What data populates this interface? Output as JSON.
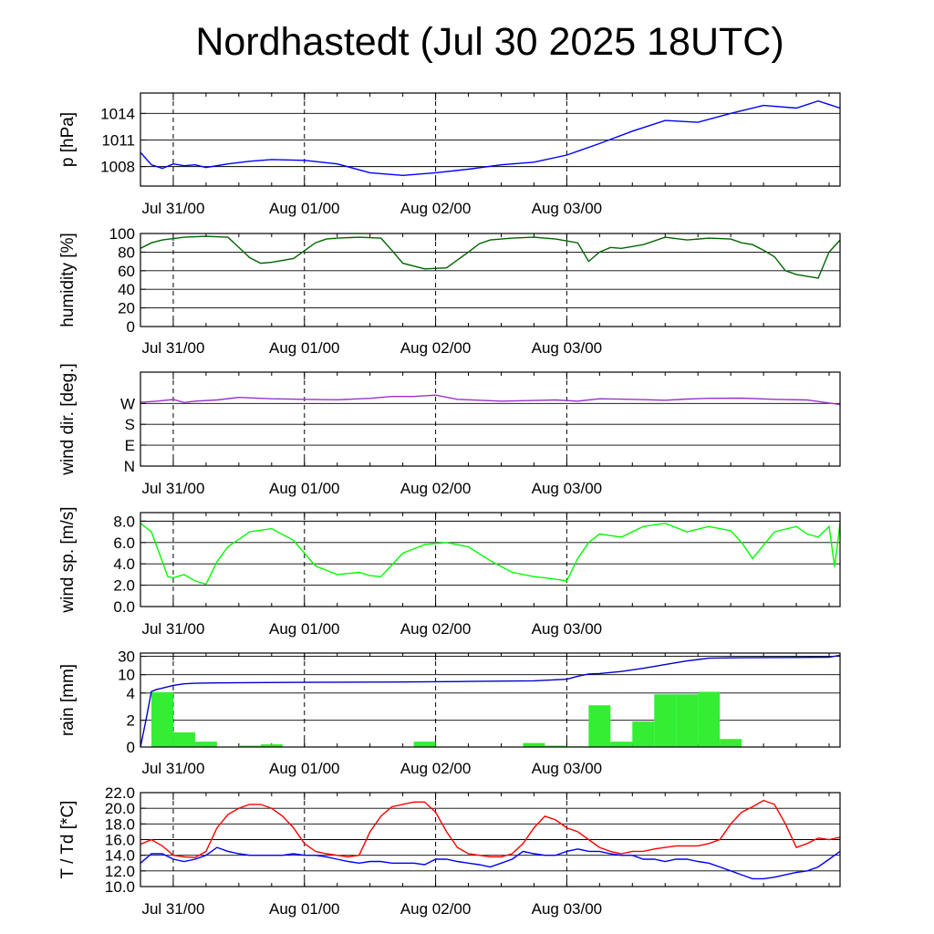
{
  "title": "Nordhastedt (Jul 30 2025 18UTC)",
  "time_labels": [
    "Jul 31/00",
    "Aug 01/00",
    "Aug 02/00",
    "Aug 03/00"
  ],
  "colors": {
    "pressure": "#0000ff",
    "humidity": "#006400",
    "wind_dir": "#9932cc",
    "wind_speed": "#00ff00",
    "rain_bar": "#33ee33",
    "rain_line": "#0000cc",
    "temperature": "#ff0000",
    "dewpoint": "#0000ff"
  },
  "chart_data": [
    {
      "type": "line",
      "name": "pressure",
      "ylabel": "p [hPa]",
      "yticks": [
        "1008",
        "1011",
        "1014"
      ],
      "ylim": [
        1005.8,
        1016.3
      ],
      "x_hours": [
        0,
        2,
        4,
        6,
        8,
        10,
        12,
        16,
        20,
        24,
        30,
        36,
        42,
        48,
        54,
        60,
        66,
        72,
        78,
        84,
        90,
        96,
        102,
        108,
        114,
        120,
        124,
        126,
        128
      ],
      "values": [
        1009.6,
        1008.2,
        1007.8,
        1008.3,
        1008.1,
        1008.2,
        1007.9,
        1008.3,
        1008.6,
        1008.8,
        1008.7,
        1008.3,
        1007.3,
        1007.0,
        1007.3,
        1007.7,
        1008.2,
        1008.5,
        1009.3,
        1010.6,
        1012.0,
        1013.2,
        1013.0,
        1014.0,
        1014.9,
        1014.6,
        1015.4,
        1015.0,
        1014.6
      ]
    },
    {
      "type": "line",
      "name": "humidity",
      "ylabel": "humidity [%]",
      "yticks": [
        "0",
        "20",
        "40",
        "60",
        "80",
        "100"
      ],
      "ylim": [
        0,
        100
      ],
      "x_hours": [
        0,
        2,
        4,
        8,
        12,
        16,
        18,
        20,
        22,
        24,
        28,
        32,
        34,
        36,
        40,
        44,
        46,
        48,
        52,
        56,
        60,
        62,
        64,
        68,
        72,
        76,
        80,
        82,
        84,
        86,
        88,
        92,
        96,
        100,
        104,
        108,
        110,
        112,
        114,
        116,
        118,
        120,
        122,
        124,
        126,
        128
      ],
      "values": [
        84,
        90,
        93,
        96,
        97,
        96,
        85,
        74,
        68,
        69,
        73,
        90,
        94,
        95,
        96,
        95,
        82,
        68,
        62,
        63,
        80,
        89,
        93,
        95,
        96,
        94,
        90,
        70,
        80,
        85,
        84,
        88,
        96,
        93,
        95,
        94,
        90,
        88,
        82,
        75,
        60,
        56,
        54,
        52,
        80,
        93
      ]
    },
    {
      "type": "line",
      "name": "wind direction",
      "ylabel": "wind dir. [deg.]",
      "yticks": [
        "N",
        "E",
        "S",
        "W"
      ],
      "ylim": [
        0,
        405
      ],
      "x_hours": [
        0,
        3,
        6,
        8,
        10,
        14,
        18,
        24,
        30,
        36,
        42,
        46,
        50,
        54,
        58,
        60,
        66,
        70,
        76,
        80,
        84,
        90,
        96,
        100,
        104,
        110,
        116,
        122,
        126,
        128
      ],
      "values": [
        275,
        280,
        287,
        274,
        280,
        285,
        296,
        290,
        288,
        286,
        292,
        300,
        300,
        306,
        288,
        286,
        280,
        282,
        285,
        280,
        290,
        288,
        284,
        289,
        292,
        293,
        288,
        285,
        272,
        265
      ]
    },
    {
      "type": "line",
      "name": "wind speed",
      "ylabel": "wind sp. [m/s]",
      "yticks": [
        "0.0",
        "2.0",
        "4.0",
        "6.0",
        "8.0"
      ],
      "ylim": [
        0,
        8.8
      ],
      "x_hours": [
        0,
        2,
        4,
        5,
        6,
        8,
        10,
        12,
        14,
        16,
        20,
        24,
        28,
        32,
        36,
        40,
        42,
        44,
        48,
        52,
        56,
        60,
        64,
        68,
        72,
        74,
        78,
        80,
        82,
        84,
        88,
        92,
        96,
        100,
        104,
        108,
        110,
        112,
        116,
        120,
        122,
        124,
        126,
        127,
        128
      ],
      "values": [
        7.8,
        7.0,
        4.2,
        2.8,
        2.7,
        3.0,
        2.4,
        2.1,
        4.2,
        5.6,
        7.0,
        7.3,
        6.2,
        3.8,
        3.0,
        3.2,
        2.9,
        2.8,
        5.0,
        5.8,
        6.0,
        5.6,
        4.3,
        3.2,
        2.8,
        2.7,
        2.4,
        4.5,
        6.0,
        6.8,
        6.5,
        7.5,
        7.8,
        7.0,
        7.5,
        7.1,
        6.0,
        4.5,
        7.0,
        7.5,
        6.8,
        6.5,
        7.5,
        3.7,
        7.8
      ]
    },
    {
      "type": "bar",
      "name": "rain",
      "ylabel": "rain [mm]",
      "yticks": [
        "0",
        "2",
        "4",
        "10",
        "30"
      ],
      "bar_width_hours": 4,
      "bar_start_hours": [
        2,
        6,
        10,
        18,
        22,
        50,
        70,
        74,
        78,
        82,
        86,
        90,
        94,
        98,
        102,
        106
      ],
      "bar_values": [
        4.3,
        1.1,
        0.4,
        0.1,
        0.2,
        0.4,
        0.3,
        0.1,
        0.05,
        3.1,
        0.4,
        1.9,
        3.9,
        3.9,
        4.4,
        0.6
      ],
      "cumulative_x_hours": [
        0,
        1,
        2,
        3,
        4,
        6,
        8,
        10,
        14,
        20,
        30,
        48,
        60,
        72,
        78,
        80,
        82,
        84,
        88,
        92,
        96,
        100,
        104,
        110,
        120,
        126,
        128
      ],
      "cumulative_values": [
        0,
        2.0,
        4.5,
        5.2,
        5.6,
        6.5,
        7.0,
        7.2,
        7.3,
        7.4,
        7.5,
        7.6,
        7.8,
        8.0,
        8.5,
        9.5,
        10.8,
        11.3,
        13.5,
        17.0,
        21.0,
        25.0,
        28.0,
        28.5,
        28.8,
        29.0,
        31.5
      ]
    },
    {
      "type": "line",
      "name": "temperature and dewpoint",
      "ylabel": "T / Td [*C]",
      "yticks": [
        "10.0",
        "12.0",
        "14.0",
        "16.0",
        "18.0",
        "20.0",
        "22.0"
      ],
      "ylim": [
        10,
        22
      ],
      "x_hours": [
        0,
        2,
        4,
        6,
        8,
        10,
        12,
        14,
        16,
        18,
        20,
        22,
        24,
        26,
        28,
        30,
        32,
        34,
        36,
        38,
        40,
        42,
        44,
        46,
        48,
        50,
        52,
        54,
        56,
        58,
        60,
        62,
        64,
        66,
        68,
        70,
        72,
        74,
        76,
        78,
        80,
        82,
        84,
        86,
        88,
        90,
        92,
        94,
        96,
        98,
        100,
        102,
        104,
        106,
        108,
        110,
        112,
        114,
        116,
        118,
        120,
        122,
        124,
        126,
        128
      ],
      "series": [
        {
          "name": "T",
          "values": [
            15.4,
            16.0,
            15.2,
            14.0,
            13.8,
            13.7,
            14.5,
            17.5,
            19.2,
            20.0,
            20.5,
            20.5,
            20.0,
            19.0,
            17.5,
            15.5,
            14.5,
            14.2,
            14.0,
            13.8,
            14.0,
            17.0,
            19.0,
            20.2,
            20.5,
            20.8,
            20.8,
            19.5,
            17.0,
            15.0,
            14.2,
            14.0,
            13.8,
            13.8,
            14.2,
            15.5,
            17.5,
            19.0,
            18.5,
            17.5,
            17.0,
            16.0,
            15.0,
            14.5,
            14.2,
            14.5,
            14.5,
            14.8,
            15.0,
            15.2,
            15.2,
            15.2,
            15.5,
            16.0,
            18.0,
            19.5,
            20.2,
            21.0,
            20.5,
            18.0,
            15.0,
            15.5,
            16.2,
            16.0,
            16.3
          ]
        },
        {
          "name": "Td",
          "values": [
            13.0,
            14.2,
            14.2,
            13.5,
            13.2,
            13.5,
            14.0,
            15.0,
            14.5,
            14.2,
            14.0,
            14.0,
            14.0,
            14.0,
            14.2,
            14.0,
            14.0,
            13.8,
            13.5,
            13.2,
            13.0,
            13.2,
            13.2,
            13.0,
            13.0,
            13.0,
            12.8,
            13.5,
            13.5,
            13.2,
            13.0,
            12.8,
            12.5,
            13.0,
            13.5,
            14.5,
            14.2,
            14.0,
            14.0,
            14.5,
            14.8,
            14.5,
            14.5,
            14.2,
            14.0,
            14.0,
            13.5,
            13.5,
            13.2,
            13.5,
            13.5,
            13.2,
            13.0,
            12.5,
            12.0,
            11.5,
            11.0,
            11.0,
            11.2,
            11.5,
            11.8,
            12.0,
            12.5,
            13.5,
            14.5
          ]
        }
      ]
    }
  ]
}
